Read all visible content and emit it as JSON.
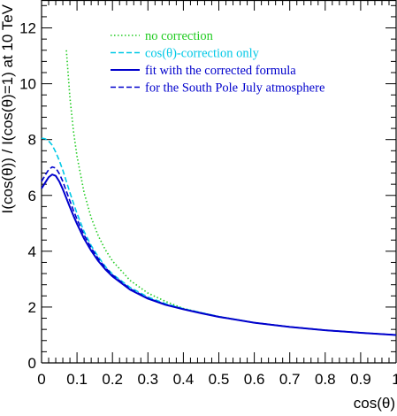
{
  "chart_data": {
    "type": "line",
    "title": "",
    "xlabel": "cos(θ)",
    "ylabel": "I(cos(θ)) / I(cos(θ)=1) at 10 TeV",
    "xlim": [
      0,
      1
    ],
    "ylim": [
      0,
      13
    ],
    "x_ticks": [
      0,
      0.1,
      0.2,
      0.3,
      0.4,
      0.5,
      0.6,
      0.7,
      0.8,
      0.9,
      1
    ],
    "x_tick_labels": [
      "0",
      "0.1",
      "0.2",
      "0.3",
      "0.4",
      "0.5",
      "0.6",
      "0.7",
      "0.8",
      "0.9",
      "1"
    ],
    "y_ticks": [
      0,
      2,
      4,
      6,
      8,
      10,
      12
    ],
    "y_tick_labels": [
      "0",
      "2",
      "4",
      "6",
      "8",
      "10",
      "12"
    ],
    "grid": false,
    "legend_position": "top-right",
    "series": [
      {
        "name": "no correction",
        "color": "#22cc22",
        "style": "dotted",
        "points": [
          [
            0.07,
            11.2
          ],
          [
            0.08,
            9.5
          ],
          [
            0.09,
            8.3
          ],
          [
            0.1,
            7.4
          ],
          [
            0.12,
            6.1
          ],
          [
            0.14,
            5.2
          ],
          [
            0.16,
            4.55
          ],
          [
            0.18,
            4.05
          ],
          [
            0.2,
            3.65
          ],
          [
            0.25,
            2.95
          ],
          [
            0.3,
            2.5
          ],
          [
            0.35,
            2.2
          ],
          [
            0.4,
            1.95
          ],
          [
            0.45,
            1.8
          ],
          [
            0.5,
            1.66
          ],
          [
            0.6,
            1.44
          ],
          [
            0.7,
            1.29
          ],
          [
            0.8,
            1.17
          ],
          [
            0.9,
            1.08
          ],
          [
            1.0,
            1.0
          ]
        ]
      },
      {
        "name": "cos(θ)-correction only",
        "color": "#00c8e6",
        "style": "dashed",
        "points": [
          [
            0.0,
            8.05
          ],
          [
            0.01,
            8.03
          ],
          [
            0.02,
            7.95
          ],
          [
            0.03,
            7.8
          ],
          [
            0.04,
            7.55
          ],
          [
            0.05,
            7.25
          ],
          [
            0.06,
            6.9
          ],
          [
            0.07,
            6.5
          ],
          [
            0.08,
            6.1
          ],
          [
            0.09,
            5.72
          ],
          [
            0.1,
            5.35
          ],
          [
            0.12,
            4.7
          ],
          [
            0.14,
            4.2
          ],
          [
            0.16,
            3.8
          ],
          [
            0.18,
            3.45
          ],
          [
            0.2,
            3.18
          ],
          [
            0.25,
            2.7
          ],
          [
            0.3,
            2.36
          ],
          [
            0.35,
            2.12
          ],
          [
            0.4,
            1.94
          ],
          [
            0.45,
            1.8
          ],
          [
            0.5,
            1.66
          ],
          [
            0.6,
            1.44
          ],
          [
            0.7,
            1.29
          ],
          [
            0.8,
            1.17
          ],
          [
            0.9,
            1.08
          ],
          [
            1.0,
            1.0
          ]
        ]
      },
      {
        "name": "fit with the corrected formula",
        "color": "#0000cc",
        "style": "solid",
        "points": [
          [
            0.0,
            6.25
          ],
          [
            0.01,
            6.45
          ],
          [
            0.02,
            6.65
          ],
          [
            0.03,
            6.75
          ],
          [
            0.04,
            6.7
          ],
          [
            0.05,
            6.5
          ],
          [
            0.06,
            6.22
          ],
          [
            0.07,
            5.9
          ],
          [
            0.08,
            5.58
          ],
          [
            0.09,
            5.27
          ],
          [
            0.1,
            4.98
          ],
          [
            0.12,
            4.45
          ],
          [
            0.14,
            4.02
          ],
          [
            0.16,
            3.65
          ],
          [
            0.18,
            3.35
          ],
          [
            0.2,
            3.1
          ],
          [
            0.25,
            2.62
          ],
          [
            0.3,
            2.3
          ],
          [
            0.35,
            2.08
          ],
          [
            0.4,
            1.92
          ],
          [
            0.45,
            1.78
          ],
          [
            0.5,
            1.65
          ],
          [
            0.6,
            1.44
          ],
          [
            0.7,
            1.29
          ],
          [
            0.8,
            1.17
          ],
          [
            0.9,
            1.08
          ],
          [
            1.0,
            1.0
          ]
        ]
      },
      {
        "name": "for the South Pole July atmosphere",
        "color": "#0000cc",
        "style": "dashed",
        "points": [
          [
            0.0,
            6.5
          ],
          [
            0.01,
            6.72
          ],
          [
            0.02,
            6.92
          ],
          [
            0.03,
            7.02
          ],
          [
            0.04,
            6.98
          ],
          [
            0.05,
            6.78
          ],
          [
            0.06,
            6.5
          ],
          [
            0.07,
            6.15
          ],
          [
            0.08,
            5.8
          ],
          [
            0.09,
            5.46
          ],
          [
            0.1,
            5.15
          ],
          [
            0.12,
            4.58
          ],
          [
            0.14,
            4.12
          ],
          [
            0.16,
            3.73
          ],
          [
            0.18,
            3.41
          ],
          [
            0.2,
            3.15
          ],
          [
            0.25,
            2.65
          ],
          [
            0.3,
            2.32
          ],
          [
            0.35,
            2.09
          ],
          [
            0.4,
            1.93
          ],
          [
            0.45,
            1.79
          ],
          [
            0.5,
            1.65
          ],
          [
            0.6,
            1.44
          ],
          [
            0.7,
            1.29
          ],
          [
            0.8,
            1.17
          ],
          [
            0.9,
            1.08
          ],
          [
            1.0,
            1.0
          ]
        ]
      }
    ]
  }
}
